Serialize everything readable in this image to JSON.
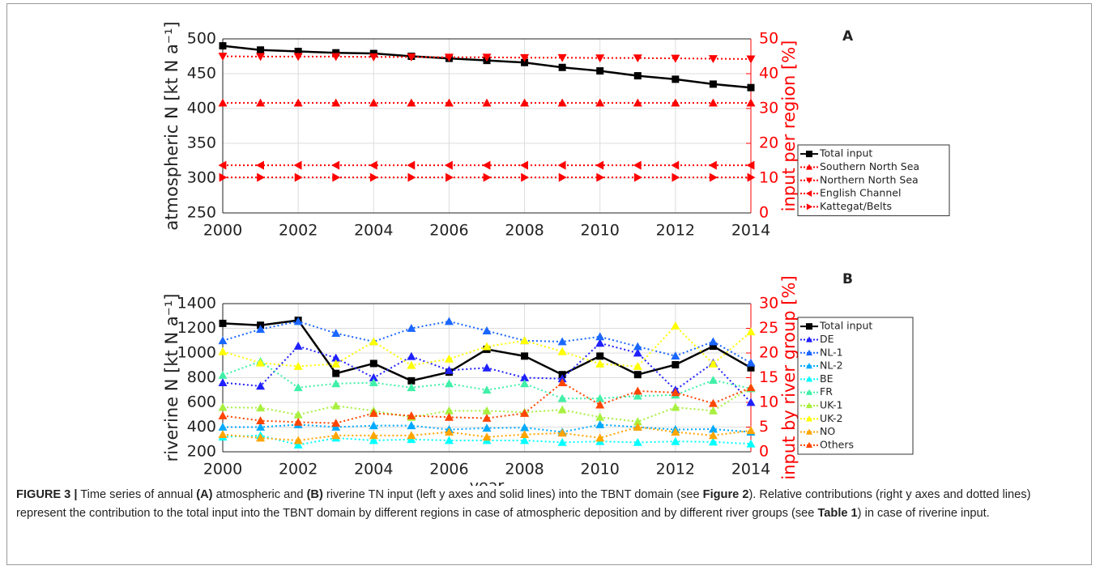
{
  "chart_data": [
    {
      "type": "line",
      "panel": "A",
      "y_label": "atmospheric N [kt N a⁻¹]",
      "y2_label": "input per region [%]",
      "x": [
        2000,
        2001,
        2002,
        2003,
        2004,
        2005,
        2006,
        2007,
        2008,
        2009,
        2010,
        2011,
        2012,
        2013,
        2014
      ],
      "xlim": [
        2000,
        2014
      ],
      "xticks": [
        2000,
        2002,
        2004,
        2006,
        2008,
        2010,
        2012,
        2014
      ],
      "ylim": [
        250,
        500
      ],
      "yticks": [
        250,
        300,
        350,
        400,
        450,
        500
      ],
      "y2lim": [
        0,
        50
      ],
      "y2ticks": [
        0,
        10,
        20,
        30,
        40,
        50
      ],
      "y2color": "#ff0000",
      "grid": true,
      "legend": "outside right",
      "series": [
        {
          "name": "Total input",
          "color": "#000000",
          "marker": "square",
          "linestyle": "solid",
          "values": [
            490,
            484,
            482,
            480,
            479,
            475,
            472,
            469,
            466,
            459,
            454,
            447,
            442,
            435,
            430
          ]
        },
        {
          "name": "Southern North Sea",
          "color": "#ff0000",
          "marker": "triangle-up",
          "linestyle": "dotted",
          "axis": "y2",
          "values": [
            31.6,
            31.6,
            31.6,
            31.6,
            31.6,
            31.6,
            31.6,
            31.6,
            31.6,
            31.6,
            31.6,
            31.6,
            31.6,
            31.6,
            31.6
          ]
        },
        {
          "name": "Northern North Sea",
          "color": "#ff0000",
          "marker": "triangle-down",
          "linestyle": "dotted",
          "axis": "y2",
          "values": [
            45.0,
            44.9,
            44.9,
            44.9,
            44.8,
            44.8,
            44.7,
            44.7,
            44.6,
            44.6,
            44.5,
            44.5,
            44.4,
            44.3,
            44.2
          ]
        },
        {
          "name": "English Channel",
          "color": "#ff0000",
          "marker": "triangle-left",
          "linestyle": "dotted",
          "axis": "y2",
          "values": [
            13.7,
            13.7,
            13.7,
            13.7,
            13.7,
            13.7,
            13.7,
            13.7,
            13.7,
            13.7,
            13.7,
            13.7,
            13.7,
            13.7,
            13.7
          ]
        },
        {
          "name": "Kattegat/Belts",
          "color": "#ff0000",
          "marker": "triangle-right",
          "linestyle": "dotted",
          "axis": "y2",
          "values": [
            10.2,
            10.2,
            10.2,
            10.2,
            10.2,
            10.2,
            10.2,
            10.2,
            10.2,
            10.2,
            10.2,
            10.2,
            10.2,
            10.2,
            10.2
          ]
        }
      ]
    },
    {
      "type": "line",
      "panel": "B",
      "y_label": "riverine N [kt N a⁻¹]",
      "y2_label": "input by river group [%]",
      "x_label": "year",
      "x": [
        2000,
        2001,
        2002,
        2003,
        2004,
        2005,
        2006,
        2007,
        2008,
        2009,
        2010,
        2011,
        2012,
        2013,
        2014
      ],
      "xlim": [
        2000,
        2014
      ],
      "xticks": [
        2000,
        2002,
        2004,
        2006,
        2008,
        2010,
        2012,
        2014
      ],
      "ylim": [
        200,
        1400
      ],
      "yticks": [
        200,
        400,
        600,
        800,
        1000,
        1200,
        1400
      ],
      "y2lim": [
        0,
        30
      ],
      "y2ticks": [
        0,
        5,
        10,
        15,
        20,
        25,
        30
      ],
      "y2color": "#ff0000",
      "grid": true,
      "legend": "outside right",
      "series": [
        {
          "name": "Total input",
          "color": "#000000",
          "marker": "square",
          "linestyle": "solid",
          "values": [
            1240,
            1225,
            1265,
            835,
            915,
            775,
            845,
            1030,
            975,
            825,
            975,
            825,
            905,
            1055,
            880
          ]
        },
        {
          "name": "DE",
          "color": "#1f1fff",
          "marker": "triangle-up",
          "linestyle": "dotted",
          "axis": "y2",
          "values": [
            14,
            13.3,
            21.4,
            19,
            15,
            19.3,
            16.5,
            17,
            15,
            14.8,
            22,
            20,
            12.5,
            18,
            10
          ]
        },
        {
          "name": "NL-1",
          "color": "#1a66ff",
          "marker": "triangle-up",
          "linestyle": "dotted",
          "axis": "y2",
          "values": [
            22.5,
            24.8,
            26.4,
            24,
            22.3,
            25,
            26.4,
            24.5,
            22.5,
            22.3,
            23.3,
            21.3,
            19.4,
            22.3,
            18
          ]
        },
        {
          "name": "NL-2",
          "color": "#00aaff",
          "marker": "triangle-up",
          "linestyle": "dotted",
          "axis": "y2",
          "values": [
            5,
            5,
            5.5,
            5,
            5.3,
            5.3,
            4.5,
            4.8,
            4.9,
            4,
            5.5,
            5,
            4.5,
            4.6,
            4
          ]
        },
        {
          "name": "BE",
          "color": "#00ffff",
          "marker": "triangle-up",
          "linestyle": "dotted",
          "axis": "y2",
          "values": [
            3,
            3.3,
            1.4,
            2.8,
            2.3,
            2.5,
            2.3,
            2.3,
            2.3,
            1.9,
            2.1,
            1.9,
            2.1,
            2,
            1.6
          ]
        },
        {
          "name": "FR",
          "color": "#40f0a8",
          "marker": "triangle-up",
          "linestyle": "dotted",
          "axis": "y2",
          "values": [
            15.5,
            18.3,
            13,
            13.8,
            14,
            13,
            13.8,
            12.5,
            13.8,
            10.8,
            10.8,
            11.3,
            11.5,
            14.5,
            12.8
          ]
        },
        {
          "name": "UK-1",
          "color": "#a8f040",
          "marker": "triangle-up",
          "linestyle": "dotted",
          "axis": "y2",
          "values": [
            9,
            8.9,
            7.5,
            9.3,
            8.3,
            7,
            8.3,
            8.3,
            8,
            8.5,
            7,
            6.1,
            9,
            8.3,
            13
          ]
        },
        {
          "name": "UK-2",
          "color": "#ffff00",
          "marker": "triangle-up",
          "linestyle": "dotted",
          "axis": "y2",
          "values": [
            20.3,
            18,
            17.3,
            17.8,
            22.3,
            17.5,
            18.8,
            21.3,
            22.5,
            20.3,
            17.8,
            17.3,
            25.5,
            17.8,
            24.3
          ]
        },
        {
          "name": "NO",
          "color": "#ffa500",
          "marker": "triangle-up",
          "linestyle": "dotted",
          "axis": "y2",
          "values": [
            3.5,
            2.8,
            2.3,
            3.3,
            3.3,
            3.3,
            4,
            3,
            3.5,
            3.8,
            2.8,
            5,
            4,
            3.3,
            4.3
          ]
        },
        {
          "name": "Others",
          "color": "#ff4500",
          "marker": "triangle-up",
          "linestyle": "dotted",
          "axis": "y2",
          "values": [
            7.3,
            6.3,
            6,
            5.8,
            7.8,
            7.3,
            7,
            6.8,
            7.8,
            14,
            9.5,
            12.3,
            12,
            9.8,
            13
          ]
        }
      ]
    }
  ],
  "caption": {
    "runs": [
      "FIGURE 3 |",
      " Time series of annual ",
      "(A)",
      " atmospheric and ",
      "(B)",
      " riverine TN input (left y axes and solid lines) into the TBNT domain (see ",
      "Figure 2",
      "). Relative contributions (right y axes and dotted lines) represent the contribution to the total input into the TBNT domain by different regions in case of atmospheric deposition and by different river groups (see ",
      "Table 1",
      ") in case of riverine input."
    ]
  }
}
